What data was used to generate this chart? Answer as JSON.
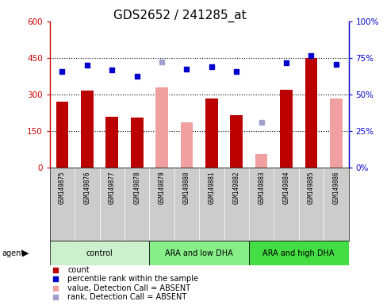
{
  "title": "GDS2652 / 241285_at",
  "samples": [
    "GSM149875",
    "GSM149876",
    "GSM149877",
    "GSM149878",
    "GSM149879",
    "GSM149880",
    "GSM149881",
    "GSM149882",
    "GSM149883",
    "GSM149884",
    "GSM149885",
    "GSM149886"
  ],
  "groups": [
    {
      "label": "control",
      "color": "#ccf0cc",
      "span": [
        0,
        4
      ]
    },
    {
      "label": "ARA and low DHA",
      "color": "#88ee88",
      "span": [
        4,
        8
      ]
    },
    {
      "label": "ARA and high DHA",
      "color": "#44dd44",
      "span": [
        8,
        12
      ]
    }
  ],
  "bar_values": [
    270,
    315,
    210,
    205,
    null,
    null,
    285,
    215,
    null,
    320,
    450,
    null
  ],
  "bar_absent_values": [
    null,
    null,
    null,
    null,
    330,
    185,
    null,
    null,
    55,
    null,
    null,
    285
  ],
  "bar_colors_present": "#bb0000",
  "bar_colors_absent": "#f0a0a0",
  "rank_values": [
    395,
    420,
    400,
    375,
    null,
    405,
    415,
    395,
    null,
    430,
    460,
    425
  ],
  "rank_absent_values": [
    null,
    null,
    null,
    null,
    435,
    null,
    null,
    null,
    185,
    null,
    null,
    null
  ],
  "rank_color_present": "#0000cc",
  "rank_color_absent": "#a0a0cc",
  "ylim_left": [
    0,
    600
  ],
  "ylim_right": [
    0,
    100
  ],
  "yticks_left": [
    0,
    150,
    300,
    450,
    600
  ],
  "yticks_right": [
    0,
    25,
    50,
    75,
    100
  ],
  "ytick_labels_left": [
    "0",
    "150",
    "300",
    "450",
    "600"
  ],
  "ytick_labels_right": [
    "0%",
    "25%",
    "50%",
    "75%",
    "100%"
  ],
  "hlines": [
    150,
    300,
    450
  ],
  "background_color": "#ffffff",
  "plot_bg_color": "#ffffff",
  "tick_area_color": "#cccccc",
  "title_fontsize": 11,
  "left_axis_color": "#cc0000",
  "right_axis_color": "#0000cc",
  "legend_items": [
    {
      "color": "#bb0000",
      "label": "count"
    },
    {
      "color": "#0000cc",
      "label": "percentile rank within the sample"
    },
    {
      "color": "#f0a0a0",
      "label": "value, Detection Call = ABSENT"
    },
    {
      "color": "#a0a0cc",
      "label": "rank, Detection Call = ABSENT"
    }
  ]
}
